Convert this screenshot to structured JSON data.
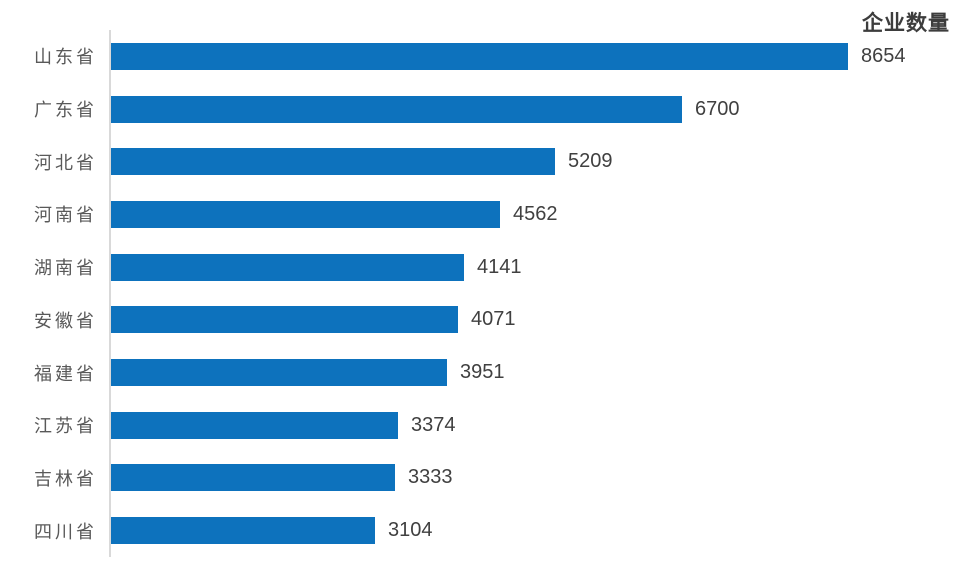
{
  "chart": {
    "title": "企业数量",
    "colors": {
      "bar": "#0d72bd",
      "axis_line": "#d9d9d9",
      "category_label": "#595959",
      "value_label": "#404040",
      "title": "#3d3d3d"
    }
  },
  "chart_data": {
    "type": "bar",
    "orientation": "horizontal",
    "title": "企业数量",
    "categories": [
      "山东省",
      "广东省",
      "河北省",
      "河南省",
      "湖南省",
      "安徽省",
      "福建省",
      "江苏省",
      "吉林省",
      "四川省"
    ],
    "values": [
      8654,
      6700,
      5209,
      4562,
      4141,
      4071,
      3951,
      3374,
      3333,
      3104
    ],
    "xlabel": "",
    "ylabel": "",
    "xlim": [
      0,
      8654
    ],
    "grid": "off",
    "legend_position": "none",
    "value_labels_shown": true,
    "sort_order": "descending"
  }
}
